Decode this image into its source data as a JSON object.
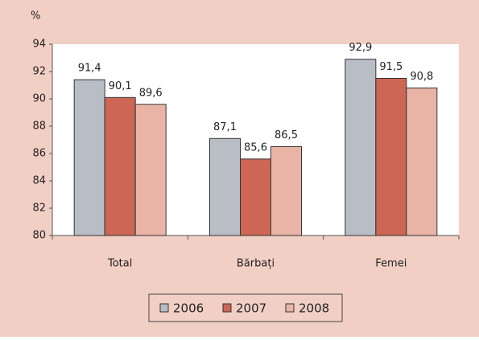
{
  "chart_data": {
    "type": "bar",
    "unit_label": "%",
    "categories": [
      "Total",
      "Bărbați",
      "Femei"
    ],
    "series": [
      {
        "name": "2006",
        "color": "#b9bec6",
        "values": [
          91.4,
          87.1,
          92.9
        ],
        "value_labels": [
          "91,4",
          "87,1",
          "92,9"
        ]
      },
      {
        "name": "2007",
        "color": "#cd6655",
        "values": [
          90.1,
          85.6,
          91.5
        ],
        "value_labels": [
          "90,1",
          "85,6",
          "91,5"
        ]
      },
      {
        "name": "2008",
        "color": "#e9b4a6",
        "values": [
          89.6,
          86.5,
          90.8
        ],
        "value_labels": [
          "89,6",
          "86,5",
          "90,8"
        ]
      }
    ],
    "ylim": [
      80,
      94
    ],
    "yticks": [
      80,
      82,
      84,
      86,
      88,
      90,
      92,
      94
    ],
    "legend": "bottom"
  }
}
